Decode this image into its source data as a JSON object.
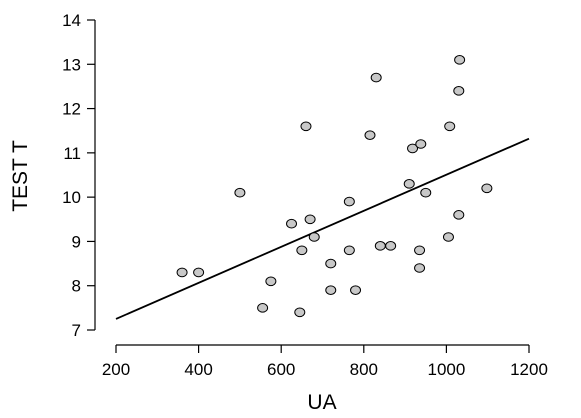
{
  "chart_data": {
    "type": "scatter",
    "title": "",
    "xlabel": "UA",
    "ylabel": "TEST T",
    "xlim": [
      200,
      1200
    ],
    "ylim": [
      7,
      14
    ],
    "xticks": [
      200,
      400,
      600,
      800,
      1000,
      1200
    ],
    "xtick_labels": [
      "200",
      "400",
      "600",
      "800",
      "1000",
      "1200"
    ],
    "yticks": [
      7,
      8,
      9,
      10,
      11,
      12,
      13,
      14
    ],
    "ytick_labels": [
      "7",
      "8",
      "9",
      "10",
      "11",
      "12",
      "13",
      "14"
    ],
    "grid": false,
    "legend": "none",
    "marker_color": "#c8c8c8",
    "marker_edge_color": "#000000",
    "line_color": "#000000",
    "series": [
      {
        "points": [
          [
            360,
            8.3
          ],
          [
            400,
            8.3
          ],
          [
            500,
            10.1
          ],
          [
            555,
            7.5
          ],
          [
            575,
            8.1
          ],
          [
            625,
            9.4
          ],
          [
            645,
            7.4
          ],
          [
            650,
            8.8
          ],
          [
            660,
            11.6
          ],
          [
            670,
            9.5
          ],
          [
            680,
            9.1
          ],
          [
            720,
            7.9
          ],
          [
            720,
            8.5
          ],
          [
            765,
            8.8
          ],
          [
            765,
            9.9
          ],
          [
            780,
            7.9
          ],
          [
            815,
            11.4
          ],
          [
            830,
            12.7
          ],
          [
            840,
            8.9
          ],
          [
            865,
            8.9
          ],
          [
            910,
            10.3
          ],
          [
            918,
            11.1
          ],
          [
            935,
            8.4
          ],
          [
            935,
            8.8
          ],
          [
            938,
            11.2
          ],
          [
            950,
            10.1
          ],
          [
            1005,
            9.1
          ],
          [
            1008,
            11.6
          ],
          [
            1030,
            9.6
          ],
          [
            1030,
            12.4
          ],
          [
            1032,
            13.1
          ],
          [
            1098,
            10.2
          ]
        ]
      }
    ],
    "regression_line": {
      "x": [
        200,
        1200
      ],
      "y": [
        7.25,
        11.32
      ]
    }
  }
}
